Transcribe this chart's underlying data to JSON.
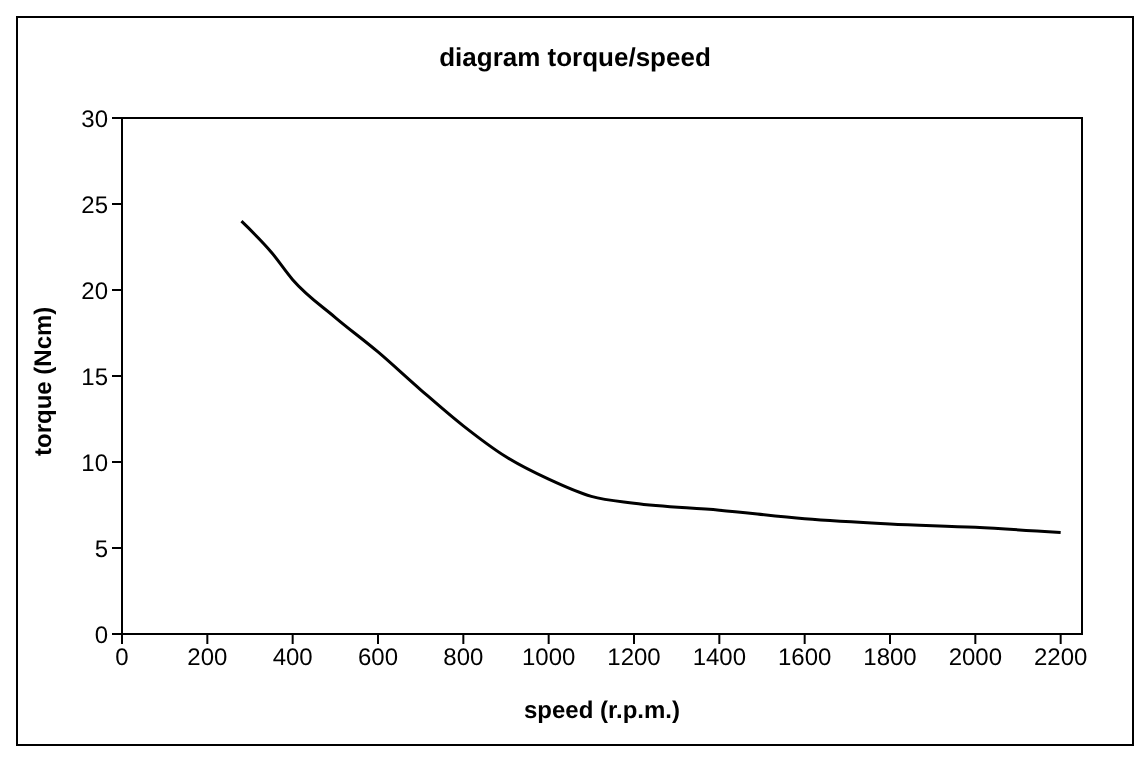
{
  "chart_data": {
    "type": "line",
    "title": "diagram torque/speed",
    "xlabel": "speed (r.p.m.)",
    "ylabel": "torque (Ncm)",
    "x": [
      280,
      350,
      400,
      500,
      600,
      700,
      800,
      900,
      1000,
      1100,
      1200,
      1400,
      1600,
      1800,
      2000,
      2200
    ],
    "series": [
      {
        "color": "#000000",
        "values": [
          24,
          22.2,
          20.6,
          18.4,
          16.4,
          14.2,
          12.1,
          10.3,
          9,
          8,
          7.6,
          7.2,
          6.7,
          6.4,
          6.2,
          5.9
        ]
      }
    ],
    "xlim": [
      0,
      2250
    ],
    "xticks": [
      0,
      200,
      400,
      600,
      800,
      1000,
      1200,
      1400,
      1600,
      1800,
      2000,
      2200
    ],
    "ylim": [
      0,
      30
    ],
    "yticks": [
      0,
      5,
      10,
      15,
      20,
      25,
      30
    ],
    "grid": false,
    "legend": false,
    "marker": "none",
    "line_style": "solid"
  }
}
